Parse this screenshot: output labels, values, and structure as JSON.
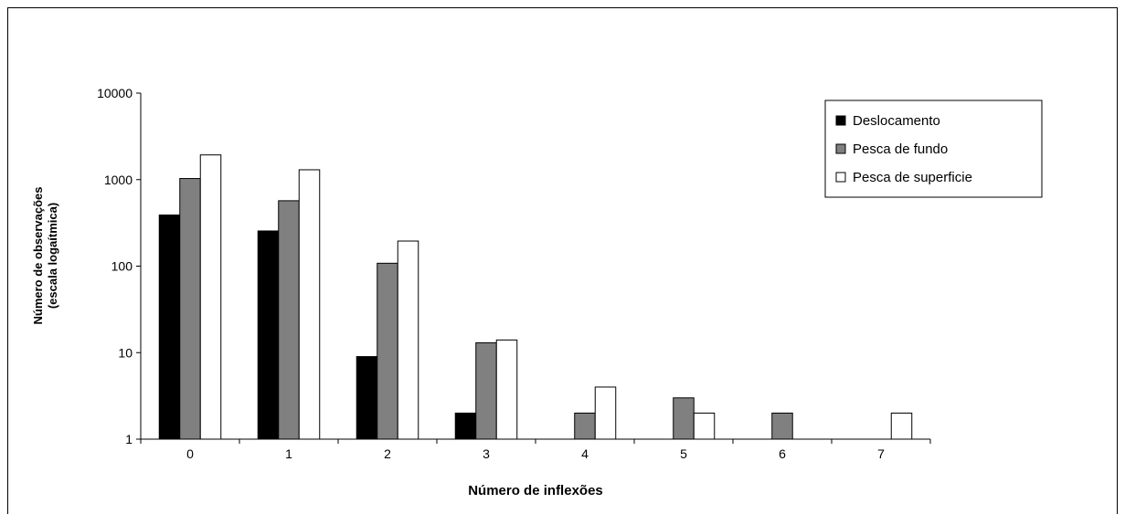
{
  "chart_data": {
    "type": "bar",
    "xlabel": "Número de inflexões",
    "ylabel_line1": "Número de observações",
    "ylabel_line2": "(escala logaítmica)",
    "y_scale": "log",
    "ylim": [
      1,
      10000
    ],
    "y_ticks": [
      "1",
      "10",
      "100",
      "1000",
      "10000"
    ],
    "categories": [
      "0",
      "1",
      "2",
      "3",
      "4",
      "5",
      "6",
      "7"
    ],
    "legend_position": "top-right",
    "series": [
      {
        "name": "Deslocamento",
        "color": "#000000",
        "values": [
          390,
          255,
          9,
          2,
          null,
          null,
          null,
          null
        ]
      },
      {
        "name": "Pesca de fundo",
        "color": "#808080",
        "values": [
          1030,
          570,
          108,
          13,
          2,
          3,
          2,
          null
        ]
      },
      {
        "name": "Pesca de superficie",
        "color": "#ffffff",
        "values": [
          1930,
          1300,
          195,
          14,
          4,
          2,
          null,
          2
        ]
      }
    ]
  }
}
